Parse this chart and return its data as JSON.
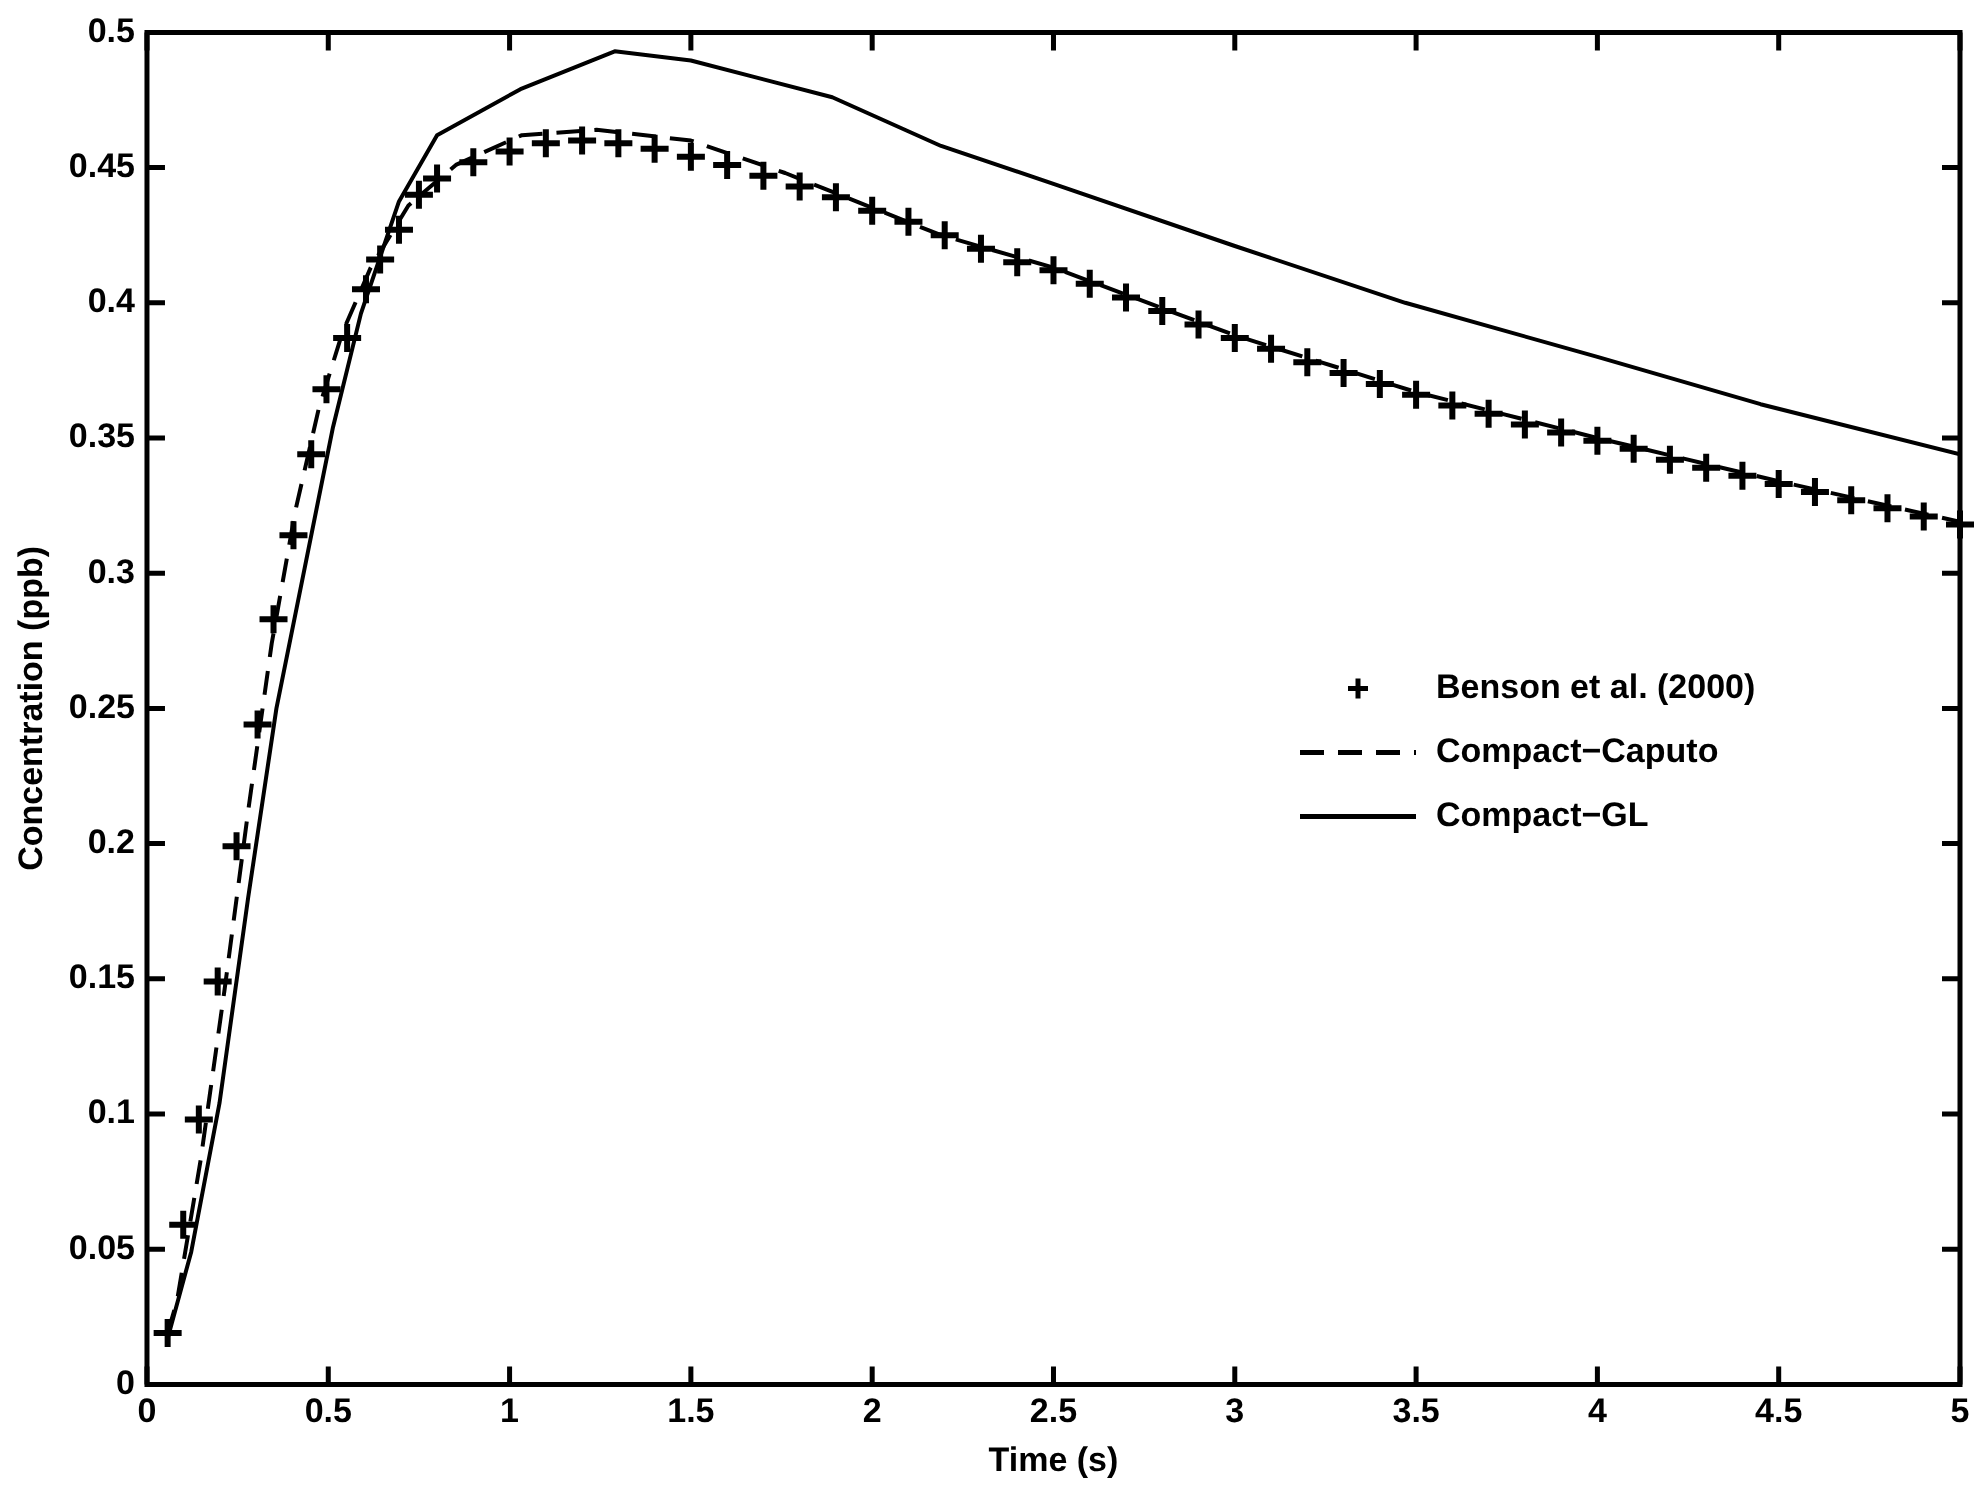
{
  "chart_data": {
    "type": "line",
    "xlabel": "Time (s)",
    "ylabel": "Concentration (ppb)",
    "xlim": [
      0,
      5
    ],
    "ylim": [
      0,
      0.5
    ],
    "xticks": [
      0,
      0.5,
      1,
      1.5,
      2,
      2.5,
      3,
      3.5,
      4,
      4.5,
      5
    ],
    "yticks": [
      0,
      0.05,
      0.1,
      0.15,
      0.2,
      0.25,
      0.3,
      0.35,
      0.4,
      0.45,
      0.5
    ],
    "grid": false,
    "legend": "right",
    "series": [
      {
        "name": "Benson et al. (2000)",
        "type": "scatter",
        "marker": "cross",
        "color": "#000000",
        "x": [
          0.057,
          0.1,
          0.143,
          0.195,
          0.247,
          0.305,
          0.349,
          0.404,
          0.453,
          0.495,
          0.552,
          0.604,
          0.643,
          0.695,
          0.75,
          0.8,
          0.9,
          1.0,
          1.1,
          1.2,
          1.3,
          1.4,
          1.5,
          1.6,
          1.7,
          1.8,
          1.9,
          2.0,
          2.1,
          2.2,
          2.3,
          2.4,
          2.5,
          2.6,
          2.7,
          2.8,
          2.9,
          3.0,
          3.1,
          3.2,
          3.3,
          3.4,
          3.5,
          3.6,
          3.7,
          3.8,
          3.9,
          4.0,
          4.1,
          4.2,
          4.3,
          4.4,
          4.5,
          4.6,
          4.7,
          4.8,
          4.9,
          5.0
        ],
        "values": [
          0.019,
          0.059,
          0.098,
          0.149,
          0.199,
          0.244,
          0.283,
          0.314,
          0.344,
          0.368,
          0.387,
          0.405,
          0.416,
          0.427,
          0.44,
          0.446,
          0.452,
          0.456,
          0.459,
          0.46,
          0.459,
          0.457,
          0.454,
          0.451,
          0.447,
          0.443,
          0.439,
          0.434,
          0.43,
          0.425,
          0.42,
          0.415,
          0.412,
          0.407,
          0.402,
          0.397,
          0.392,
          0.387,
          0.383,
          0.378,
          0.374,
          0.37,
          0.366,
          0.362,
          0.359,
          0.355,
          0.352,
          0.349,
          0.346,
          0.342,
          0.339,
          0.336,
          0.333,
          0.33,
          0.327,
          0.324,
          0.321,
          0.318
        ]
      },
      {
        "name": "Compact−Caputo",
        "type": "line",
        "line_style": "dashed",
        "color": "#000000",
        "x": [
          0.057,
          0.083,
          0.148,
          0.214,
          0.279,
          0.344,
          0.409,
          0.474,
          0.539,
          0.617,
          0.721,
          0.852,
          1.034,
          1.24,
          1.5,
          1.76,
          2.19,
          2.5,
          3.0,
          3.5,
          4.0,
          4.5,
          5.0
        ],
        "values": [
          0.019,
          0.031,
          0.083,
          0.146,
          0.212,
          0.274,
          0.323,
          0.361,
          0.389,
          0.413,
          0.436,
          0.451,
          0.462,
          0.464,
          0.46,
          0.448,
          0.425,
          0.413,
          0.388,
          0.367,
          0.35,
          0.334,
          0.319
        ]
      },
      {
        "name": "Compact−GL",
        "type": "line",
        "line_style": "solid",
        "color": "#000000",
        "x": [
          0.057,
          0.122,
          0.2,
          0.279,
          0.357,
          0.435,
          0.513,
          0.59,
          0.695,
          0.8,
          1.03,
          1.29,
          1.5,
          1.89,
          2.19,
          2.5,
          3.0,
          3.47,
          4.0,
          4.45,
          5.0
        ],
        "values": [
          0.017,
          0.049,
          0.104,
          0.18,
          0.25,
          0.302,
          0.354,
          0.396,
          0.4375,
          0.462,
          0.479,
          0.493,
          0.4896,
          0.476,
          0.458,
          0.444,
          0.421,
          0.4,
          0.38,
          0.3625,
          0.344
        ]
      }
    ]
  }
}
